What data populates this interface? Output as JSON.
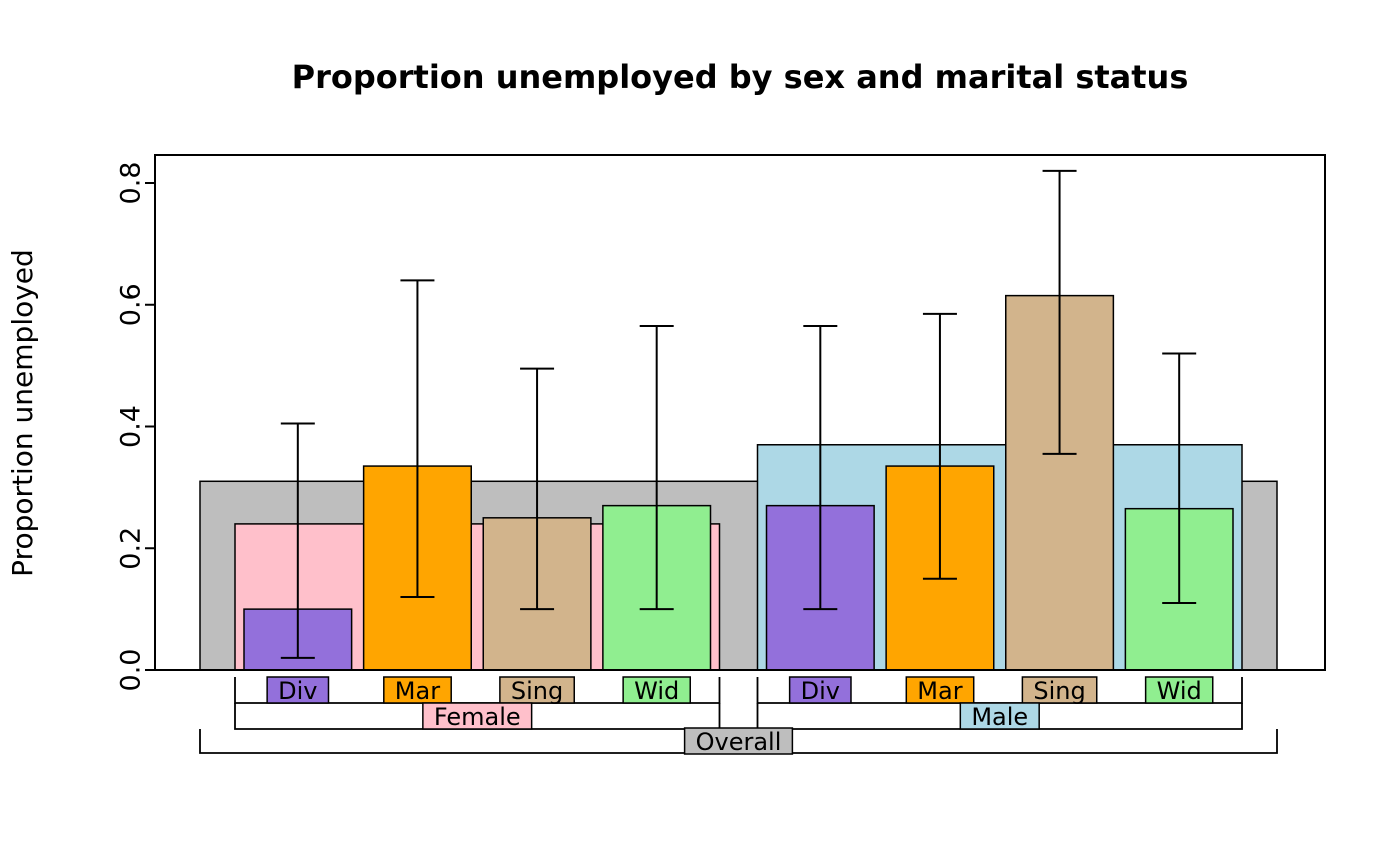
{
  "chart_data": {
    "type": "bar",
    "title": "Proportion unemployed by sex and marital status",
    "ylabel": "Proportion unemployed",
    "xlabel": "",
    "ylim": [
      0,
      0.8
    ],
    "yticks": [
      0.0,
      0.2,
      0.4,
      0.6,
      0.8
    ],
    "ytick_labels": [
      "0.0",
      "0.2",
      "0.4",
      "0.6",
      "0.8"
    ],
    "grid": false,
    "legend_position": "below-axis-nested",
    "style": "nested-breakdown-barplot-with-error-bars",
    "overall": {
      "label": "Overall",
      "value": 0.31,
      "color": "#BEBEBE"
    },
    "groups": [
      {
        "label": "Female",
        "value": 0.24,
        "color": "#FFC0CB",
        "bars": [
          {
            "label": "Div",
            "value": 0.1,
            "ci_low": 0.02,
            "ci_high": 0.405,
            "color": "#9370DB"
          },
          {
            "label": "Mar",
            "value": 0.335,
            "ci_low": 0.12,
            "ci_high": 0.64,
            "color": "#FFA500"
          },
          {
            "label": "Sing",
            "value": 0.25,
            "ci_low": 0.1,
            "ci_high": 0.495,
            "color": "#D2B48C"
          },
          {
            "label": "Wid",
            "value": 0.27,
            "ci_low": 0.1,
            "ci_high": 0.565,
            "color": "#90EE90"
          }
        ]
      },
      {
        "label": "Male",
        "value": 0.37,
        "color": "#ADD8E6",
        "bars": [
          {
            "label": "Div",
            "value": 0.27,
            "ci_low": 0.1,
            "ci_high": 0.565,
            "color": "#9370DB"
          },
          {
            "label": "Mar",
            "value": 0.335,
            "ci_low": 0.15,
            "ci_high": 0.585,
            "color": "#FFA500"
          },
          {
            "label": "Sing",
            "value": 0.615,
            "ci_low": 0.355,
            "ci_high": 0.82,
            "color": "#D2B48C"
          },
          {
            "label": "Wid",
            "value": 0.265,
            "ci_low": 0.11,
            "ci_high": 0.52,
            "color": "#90EE90"
          }
        ]
      }
    ]
  }
}
